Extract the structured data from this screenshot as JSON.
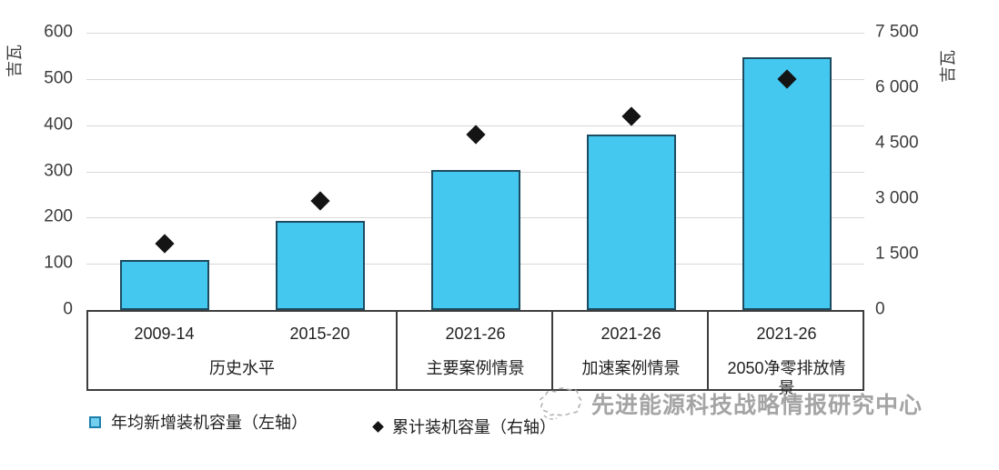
{
  "watermark": {
    "text": "先进能源科技战略情报研究中心"
  },
  "chart_data": {
    "type": "bar",
    "title": "",
    "left_axis": {
      "title": "吉瓦",
      "min": 0,
      "max": 600,
      "ticks": [
        0,
        100,
        200,
        300,
        400,
        500,
        600
      ]
    },
    "right_axis": {
      "title": "吉瓦",
      "min": 0,
      "max": 7500,
      "ticks": [
        {
          "v": 0,
          "label": "0"
        },
        {
          "v": 1500,
          "label": "1 500"
        },
        {
          "v": 3000,
          "label": "3 000"
        },
        {
          "v": 4500,
          "label": "4 500"
        },
        {
          "v": 6000,
          "label": "6 000"
        },
        {
          "v": 7500,
          "label": "7 500"
        }
      ]
    },
    "categories": [
      "2009-14",
      "2015-20",
      "2021-26",
      "2021-26",
      "2021-26"
    ],
    "groups": [
      {
        "label": "历史水平",
        "span": 2
      },
      {
        "label": "主要案例情景",
        "span": 1
      },
      {
        "label": "加速案例情景",
        "span": 1
      },
      {
        "label": "2050净零排放情景",
        "span": 1
      }
    ],
    "series": [
      {
        "name": "年均新增装机容量（左轴）",
        "type": "bar",
        "axis": "left",
        "values": [
          109,
          192,
          302,
          380,
          546
        ]
      },
      {
        "name": "累计装机容量（右轴）",
        "type": "scatter",
        "axis": "right",
        "values": [
          1800,
          2950,
          4750,
          5250,
          6250
        ]
      }
    ],
    "legend": [
      {
        "marker": "square",
        "label": "年均新增装机容量（左轴）"
      },
      {
        "marker": "diamond",
        "label": "累计装机容量（右轴）"
      }
    ],
    "grid": true,
    "legend_position": "bottom",
    "colors": {
      "bar_fill": "#45C8F0",
      "bar_border": "#1D4B60",
      "diamond": "#141414",
      "grid": "#D8D8D8",
      "axis_text": "#3C3C3C",
      "box_border": "#3D3D3D"
    }
  }
}
